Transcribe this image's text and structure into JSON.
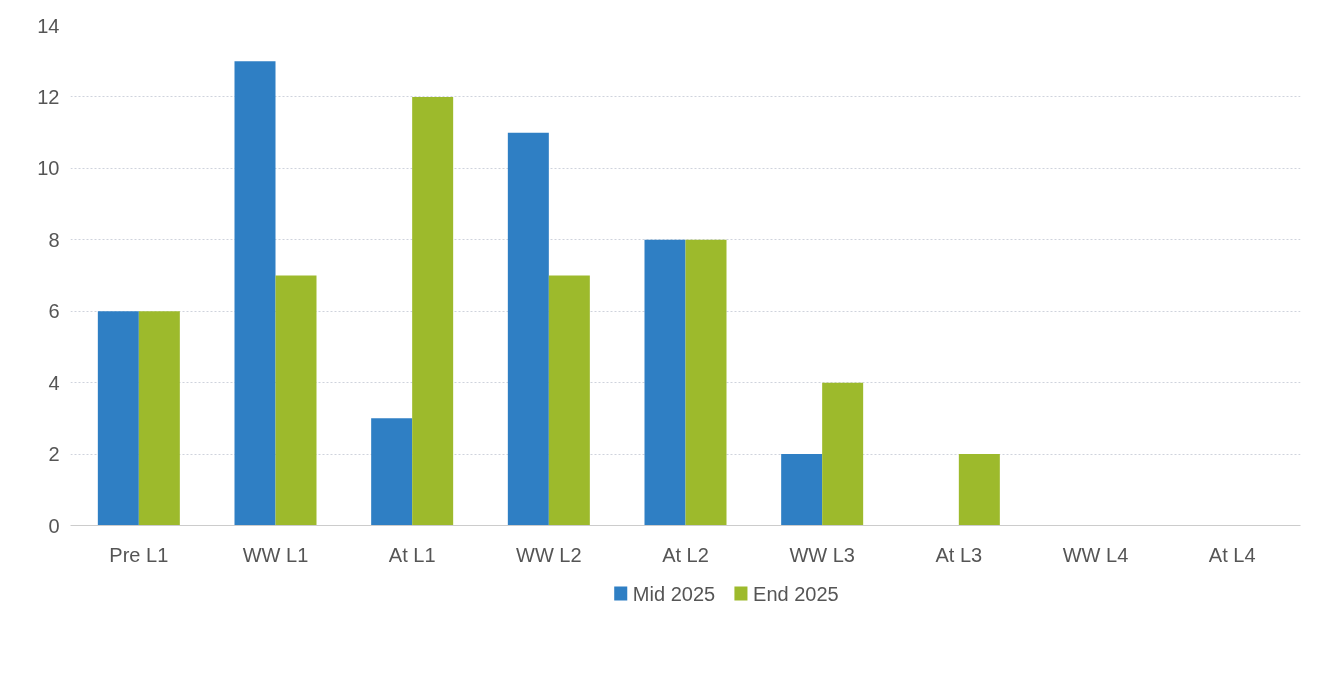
{
  "chart_data": {
    "type": "bar",
    "categories": [
      "Pre L1",
      "WW L1",
      "At L1",
      "WW L2",
      "At L2",
      "WW L3",
      "At L3",
      "WW L4",
      "At L4"
    ],
    "series": [
      {
        "name": "Mid 2025",
        "color": "#2f7fc4",
        "values": [
          6,
          13,
          3,
          11,
          8,
          2,
          0,
          0,
          0
        ]
      },
      {
        "name": "End 2025",
        "color": "#9dba2c",
        "values": [
          6,
          7,
          12,
          7,
          8,
          4,
          2,
          0,
          0
        ]
      }
    ],
    "ylim": [
      0,
      14
    ],
    "yticks": [
      0,
      2,
      4,
      6,
      8,
      10,
      12,
      14
    ],
    "grid": "y",
    "legend": "bottom"
  }
}
